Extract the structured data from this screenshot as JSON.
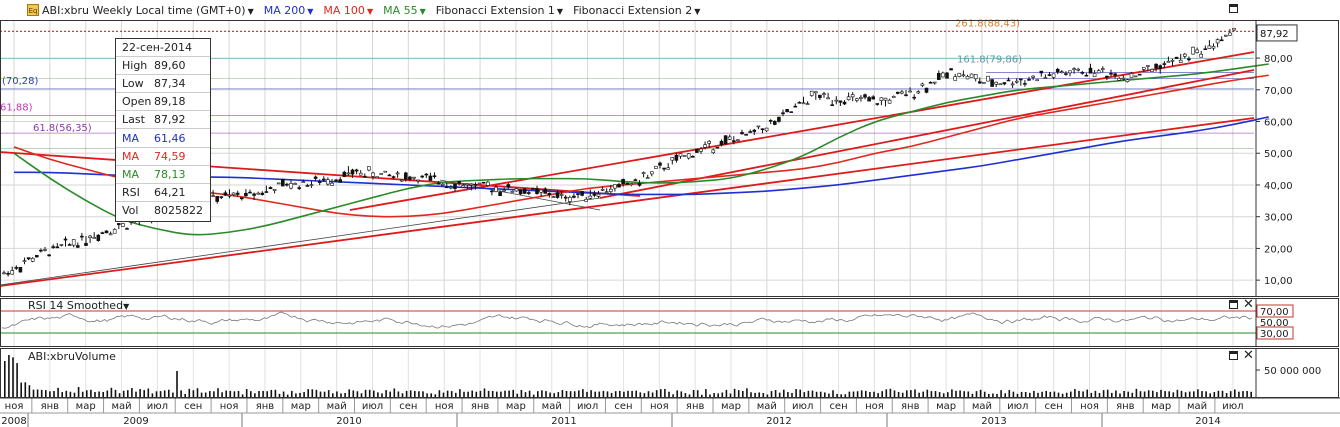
{
  "toolbar": {
    "symbol_label": "ABI:xbru Weekly Local time (GMT+0)",
    "eq_icon": "Eq",
    "ma200_label": "MA 200",
    "ma100_label": "MA 100",
    "ma55_label": "MA 55",
    "fib1_label": "Fibonacci Extension 1",
    "fib2_label": "Fibonacci Extension 2"
  },
  "colors": {
    "ma200": "#1f2fd0",
    "ma100": "#e0281e",
    "ma55": "#2a8a2a",
    "price": "#111111",
    "trend": "#dd1b1b",
    "fib_orange": "#d97a2a",
    "fib_teal": "#4aa0a6",
    "fib_blue": "#2a3fb0",
    "fib_magenta": "#c035c0",
    "fib_purple": "#8a3aa8"
  },
  "info_box": {
    "date": "22-сен-2014",
    "rows": [
      {
        "k": "High",
        "v": "89,60",
        "color": "#222"
      },
      {
        "k": "Low",
        "v": "87,34",
        "color": "#222"
      },
      {
        "k": "Open",
        "v": "89,18",
        "color": "#222"
      },
      {
        "k": "Last",
        "v": "87,92",
        "color": "#222"
      },
      {
        "k": "MA",
        "v": "61,46",
        "color": "#1f2fd0"
      },
      {
        "k": "MA",
        "v": "74,59",
        "color": "#e0281e"
      },
      {
        "k": "MA",
        "v": "78,13",
        "color": "#2a8a2a"
      },
      {
        "k": "RSI",
        "v": "64,21",
        "color": "#222"
      },
      {
        "k": "Vol",
        "v": "8025822",
        "color": "#222"
      }
    ]
  },
  "fib_labels": {
    "fib_2618": "261.8(88,43)",
    "fib_1618": "161.8(79,86)",
    "left_1": "(70,28)",
    "left_2": "61,88)",
    "left_3": "61.8(56,35)"
  },
  "last_price_label": "87,92",
  "rsi_pane": {
    "label": "RSI 14 Smoothed",
    "ticks": [
      "70,00",
      "50,00",
      "30,00"
    ]
  },
  "volume_pane": {
    "label": "ABI:xbruVolume",
    "tick": "50 000 000"
  },
  "x_axis": {
    "month_ticks": [
      "ноя",
      "янв",
      "мар",
      "май",
      "июл",
      "сен",
      "ноя",
      "янв",
      "мар",
      "май",
      "июл",
      "сен",
      "ноя",
      "янв",
      "мар",
      "май",
      "июл",
      "сен",
      "ноя",
      "янв",
      "мар",
      "май",
      "июл",
      "сен",
      "ноя",
      "янв",
      "мар",
      "май",
      "июл",
      "сен",
      "ноя",
      "янв",
      "мар",
      "май",
      "июл"
    ],
    "year_labels": [
      "2008",
      "2009",
      "2010",
      "2011",
      "2012",
      "2013",
      "2014"
    ]
  },
  "chart_data": {
    "type": "line",
    "title": "ABI:xbru Weekly",
    "x": [
      "2008-11",
      "2009-01",
      "2009-03",
      "2009-05",
      "2009-07",
      "2009-09",
      "2009-11",
      "2010-01",
      "2010-03",
      "2010-05",
      "2010-07",
      "2010-09",
      "2010-11",
      "2011-01",
      "2011-03",
      "2011-05",
      "2011-07",
      "2011-09",
      "2011-11",
      "2012-01",
      "2012-03",
      "2012-05",
      "2012-07",
      "2012-09",
      "2012-11",
      "2013-01",
      "2013-03",
      "2013-05",
      "2013-07",
      "2013-09",
      "2013-11",
      "2014-01",
      "2014-03",
      "2014-05",
      "2014-07",
      "2014-09"
    ],
    "series": [
      {
        "name": "ABI:xbru",
        "values": [
          12,
          18,
          22,
          26,
          29,
          33,
          36,
          37,
          40,
          41,
          44,
          43,
          42,
          40,
          39,
          38,
          36,
          38,
          41,
          47,
          52,
          55,
          60,
          68,
          67,
          66,
          70,
          76,
          72,
          73,
          75,
          76,
          74,
          78,
          82,
          87.92
        ]
      },
      {
        "name": "MA 200",
        "values": [
          44,
          44,
          43.5,
          43,
          43,
          42.5,
          42.5,
          42,
          41.5,
          41,
          40.5,
          40,
          39.5,
          39,
          38.5,
          38,
          37.5,
          37,
          37,
          37,
          37.5,
          38,
          39,
          40,
          41.5,
          43,
          44.5,
          46,
          48,
          50,
          52,
          54,
          55.5,
          57,
          59,
          61.46
        ]
      },
      {
        "name": "MA 100",
        "values": [
          52,
          48,
          45,
          42,
          40,
          38,
          37,
          35,
          33,
          31,
          30,
          30,
          31,
          33,
          35,
          37,
          39,
          40,
          41,
          42,
          43,
          44,
          45,
          47,
          50,
          52,
          55,
          58,
          61,
          63,
          65,
          67,
          69,
          71,
          73,
          74.59
        ]
      },
      {
        "name": "MA 55",
        "values": [
          50,
          42,
          35,
          29,
          26,
          24,
          25,
          27,
          30,
          33,
          36,
          39,
          41,
          41.5,
          42,
          42,
          42,
          41,
          40.5,
          41,
          42,
          45,
          49,
          55,
          60,
          63,
          66,
          68,
          70,
          71,
          72,
          73,
          74,
          75,
          76.5,
          78.13
        ]
      }
    ],
    "fibonacci_levels": [
      {
        "label": "261.8",
        "value": 88.43
      },
      {
        "label": "161.8",
        "value": 79.86
      },
      {
        "label": "",
        "value": 70.28
      },
      {
        "label": "",
        "value": 61.88
      },
      {
        "label": "61.8",
        "value": 56.35
      }
    ],
    "last": 87.92,
    "ylim": [
      5,
      92
    ],
    "y_ticks": [
      "10,00",
      "20,00",
      "30,00",
      "40,00",
      "50,00",
      "60,00",
      "70,00",
      "80,00"
    ],
    "rsi": {
      "name": "RSI 14 Smoothed",
      "upper": 70,
      "lower": 30,
      "last": 64.21
    },
    "volume_last": 8025822
  }
}
